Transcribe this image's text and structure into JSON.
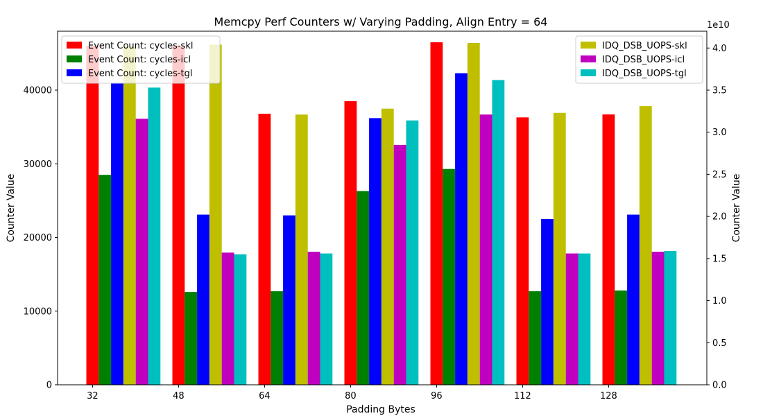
{
  "chart_data": {
    "type": "bar",
    "title": "Memcpy Perf Counters w/ Varying Padding, Align Entry = 64",
    "xlabel": "Padding Bytes",
    "ylabel_left": "Counter Value",
    "ylabel_right": "Counter Value",
    "right_axis_exponent": "1e10",
    "categories": [
      "32",
      "48",
      "64",
      "80",
      "96",
      "112",
      "128"
    ],
    "ylim_left": [
      0,
      48000
    ],
    "ylim_right": [
      0,
      4.2
    ],
    "left_ticks": [
      "0",
      "10000",
      "20000",
      "30000",
      "40000"
    ],
    "right_ticks": [
      "0.0",
      "0.5",
      "1.0",
      "1.5",
      "2.0",
      "2.5",
      "3.0",
      "3.5",
      "4.0"
    ],
    "left_series": [
      {
        "name": "Event Count: cycles-skl",
        "color": "#ff0000",
        "values": [
          46000,
          46000,
          36800,
          38500,
          46500,
          36300,
          36700
        ]
      },
      {
        "name": "Event Count: cycles-icl",
        "color": "#008000",
        "values": [
          28500,
          12600,
          12700,
          26300,
          29300,
          12700,
          12800
        ]
      },
      {
        "name": "Event Count: cycles-tgl",
        "color": "#0000ff",
        "values": [
          41000,
          23100,
          23000,
          36200,
          42300,
          22500,
          23100
        ]
      }
    ],
    "right_series": [
      {
        "name": "IDQ_DSB_UOPS-skl",
        "color": "#bfbf00",
        "values": [
          4.02,
          4.04,
          3.21,
          3.28,
          4.06,
          3.23,
          3.31
        ]
      },
      {
        "name": "IDQ_DSB_UOPS-icl",
        "color": "#bf00bf",
        "values": [
          3.16,
          1.57,
          1.58,
          2.85,
          3.21,
          1.56,
          1.58
        ]
      },
      {
        "name": "IDQ_DSB_UOPS-tgl",
        "color": "#00bfbf",
        "values": [
          3.53,
          1.55,
          1.56,
          3.14,
          3.62,
          1.56,
          1.59
        ]
      }
    ],
    "legend_left_position": "top-left",
    "legend_right_position": "top-right",
    "grid": false
  }
}
